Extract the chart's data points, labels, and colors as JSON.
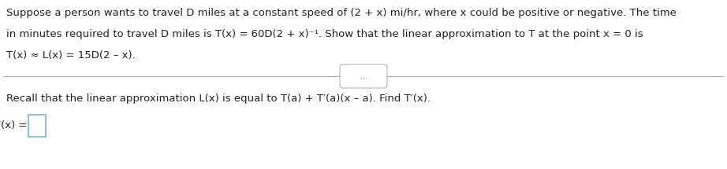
{
  "background_color": "#ffffff",
  "paragraph1_lines": [
    "Suppose a person wants to travel D miles at a constant speed of (2 + x) mi/hr, where x could be positive or negative. The time",
    "in minutes required to travel D miles is T(x) = 60D(2 + x)⁻¹. Show that the linear approximation to T at the point x = 0 is",
    "T(x) ≈ L(x) = 15D(2 – x)."
  ],
  "paragraph2_line": "Recall that the linear approximation L(x) is equal to T(a) + T′(a)(x – a). Find T′(x).",
  "answer_label": "T′(x) =",
  "dots_label": "...",
  "fontsize": 9.5,
  "text_color": "#222222",
  "line_color": "#aaaaaa",
  "box_edge_color": "#7ab8d4",
  "box_face_color": "#ffffff"
}
